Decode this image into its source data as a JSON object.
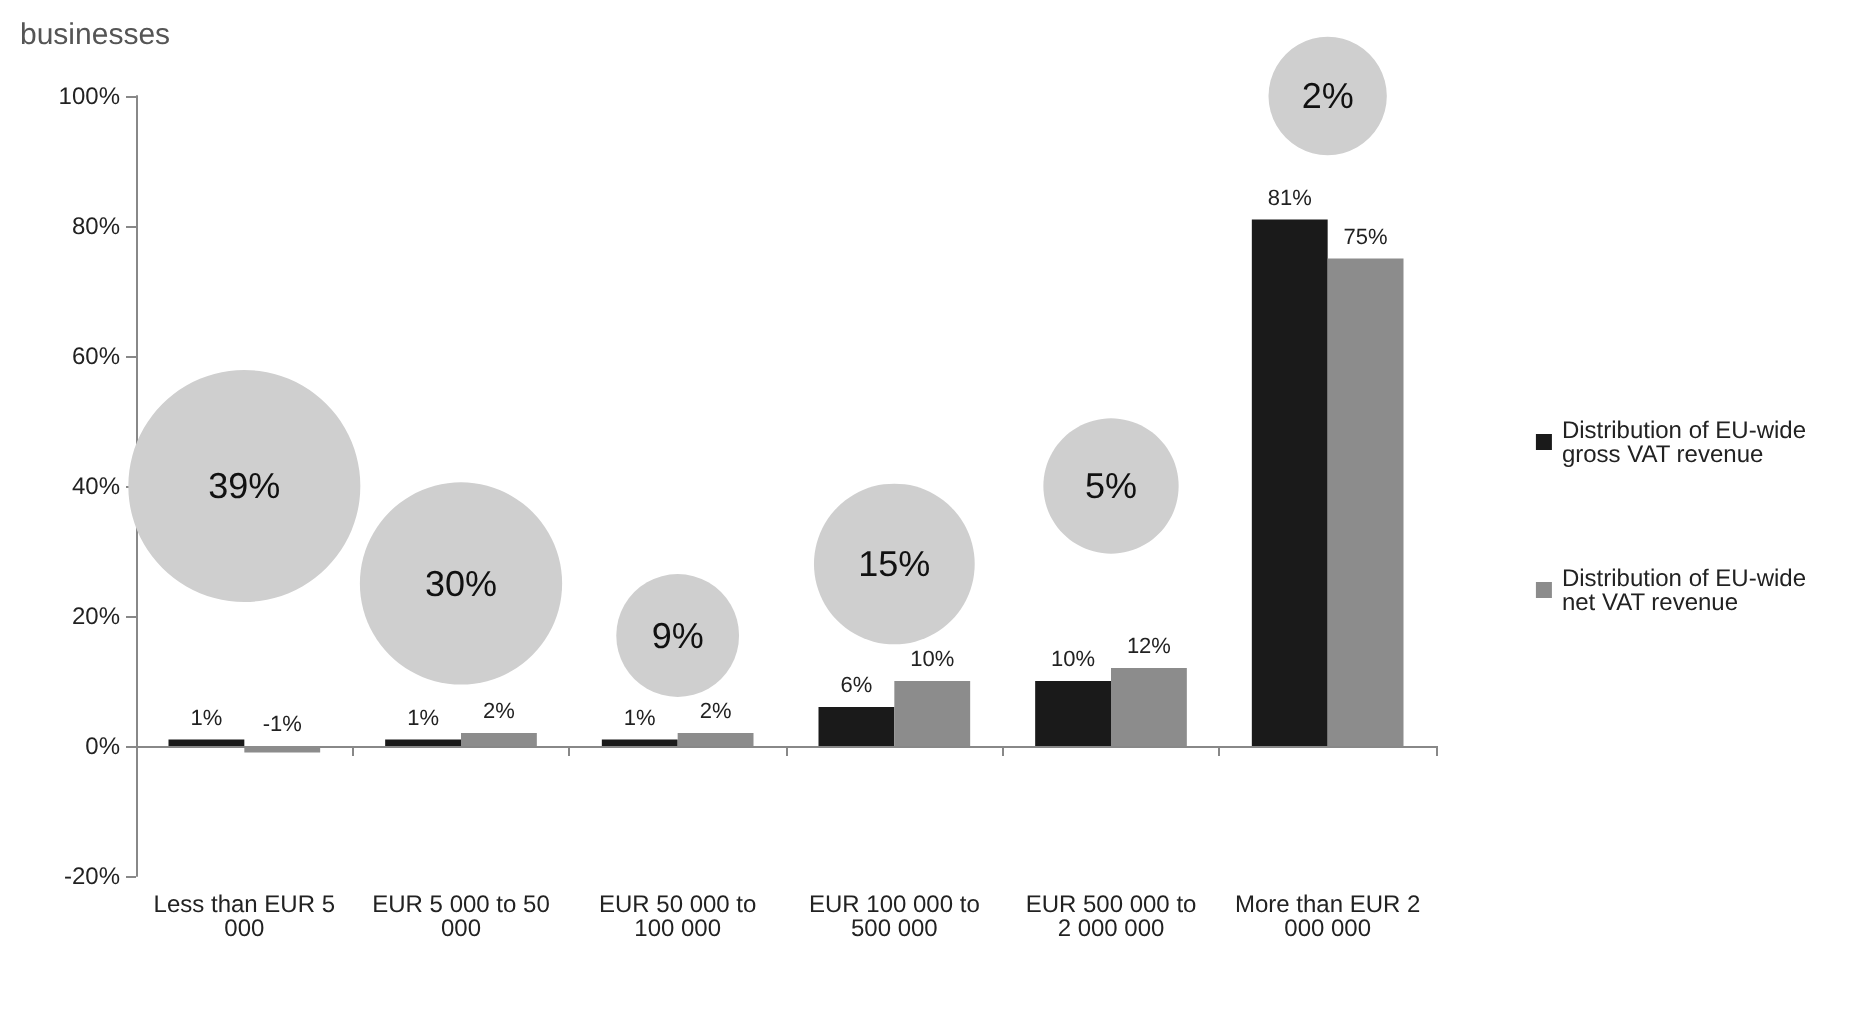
{
  "chart_data": {
    "type": "bar",
    "categories": [
      "Less than EUR 5\n000",
      "EUR 5 000 to 50\n000",
      "EUR 50 000 to\n100 000",
      "EUR 100 000 to\n500 000",
      "EUR 500 000 to\n2 000 000",
      "More than EUR 2\n000 000"
    ],
    "series": [
      {
        "name": "Distribution of EU-wide\ngross VAT revenue",
        "color": "#1a1a1a",
        "values": [
          1,
          1,
          1,
          6,
          10,
          81
        ],
        "value_labels": [
          "1%",
          "1%",
          "1%",
          "6%",
          "10%",
          "81%"
        ]
      },
      {
        "name": "Distribution of EU-wide\nnet VAT revenue",
        "color": "#8c8c8c",
        "values": [
          -1,
          2,
          2,
          10,
          12,
          75
        ],
        "value_labels": [
          "-1%",
          "2%",
          "2%",
          "10%",
          "12%",
          "75%"
        ]
      },
      {
        "type": "bubble",
        "color": "#cfcfcf",
        "values": [
          40,
          25,
          17,
          28,
          40,
          100
        ],
        "sizes": [
          1,
          0.76,
          0.28,
          0.48,
          0.34,
          0.26
        ]
      }
    ],
    "ylim": [
      -20,
      100
    ],
    "yticks": [
      {
        "value": -20,
        "label": "-20%"
      },
      {
        "value": 0,
        "label": "0%"
      },
      {
        "value": 20,
        "label": "20%"
      },
      {
        "value": 40,
        "label": "40%"
      },
      {
        "value": 60,
        "label": "60%"
      },
      {
        "value": 80,
        "label": "80%"
      },
      {
        "value": 100,
        "label": "100%"
      }
    ],
    "legend": "right",
    "annotations": [
      "businesses",
      {
        "text": "39%",
        "x": "Less than EUR 5\n000",
        "y": 40
      },
      {
        "text": "30%",
        "x": "EUR 5 000 to 50\n000",
        "y": 25
      },
      {
        "text": "9%",
        "x": "EUR 50 000 to\n100 000",
        "y": 17
      },
      {
        "text": "15%",
        "x": "EUR 100 000 to\n500 000",
        "y": 28
      },
      {
        "text": "5%",
        "x": "EUR 500 000 to\n2 000 000",
        "y": 40
      },
      {
        "text": "2%",
        "x": "More than EUR 2\n000 000",
        "y": 100
      }
    ]
  }
}
